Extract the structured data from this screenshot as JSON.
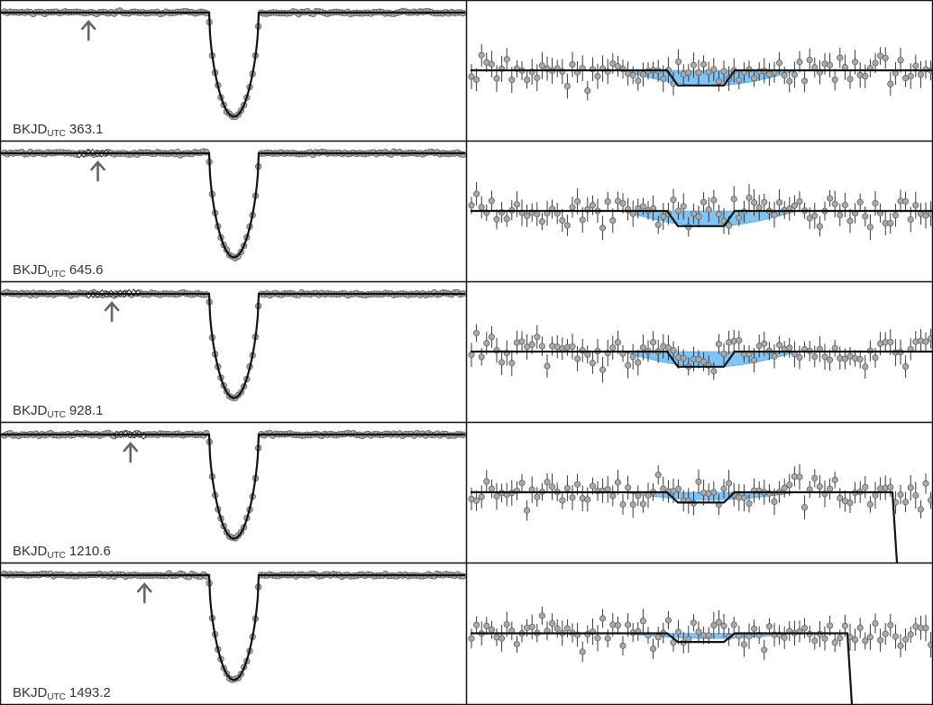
{
  "figure": {
    "border_color": "#111111",
    "point_fill": "#a9a9a9",
    "point_stroke": "#555555",
    "model_color": "#111111",
    "region_color": "#80c4f5",
    "arrow_color": "#666666"
  },
  "panels": [
    {
      "label_main": "BKJD",
      "label_sub": "UTC",
      "label_value": "363.1",
      "arrow_x": 0.19,
      "dot_seed": 11,
      "diamonds_from": -1,
      "diamonds_to": -1,
      "secondary_depth": 0.6,
      "egress_drop": false
    },
    {
      "label_main": "BKJD",
      "label_sub": "UTC",
      "label_value": "645.6",
      "arrow_x": 0.21,
      "dot_seed": 23,
      "diamonds_from": 0.17,
      "diamonds_to": 0.23,
      "secondary_depth": 0.6,
      "egress_drop": false
    },
    {
      "label_main": "BKJD",
      "label_sub": "UTC",
      "label_value": "928.1",
      "arrow_x": 0.24,
      "dot_seed": 37,
      "diamonds_from": 0.19,
      "diamonds_to": 0.3,
      "secondary_depth": 0.6,
      "egress_drop": false
    },
    {
      "label_main": "BKJD",
      "label_sub": "UTC",
      "label_value": "1210.6",
      "arrow_x": 0.28,
      "dot_seed": 41,
      "diamonds_from": 0.25,
      "diamonds_to": 0.31,
      "secondary_depth": 0.3,
      "egress_drop": true
    },
    {
      "label_main": "BKJD",
      "label_sub": "UTC",
      "label_value": "1493.2",
      "arrow_x": 0.31,
      "dot_seed": 53,
      "diamonds_from": -1,
      "diamonds_to": -1,
      "secondary_depth": 0.2,
      "egress_drop": true
    }
  ],
  "chart_data": {
    "type": "scatter",
    "title": "",
    "xlabel": "",
    "ylabel": "",
    "grid": false,
    "panel_count": 5,
    "columns": [
      "primary eclipse",
      "zoomed out-of-eclipse"
    ],
    "epochs": [
      363.1,
      645.6,
      928.1,
      1210.6,
      1493.2
    ]
  }
}
